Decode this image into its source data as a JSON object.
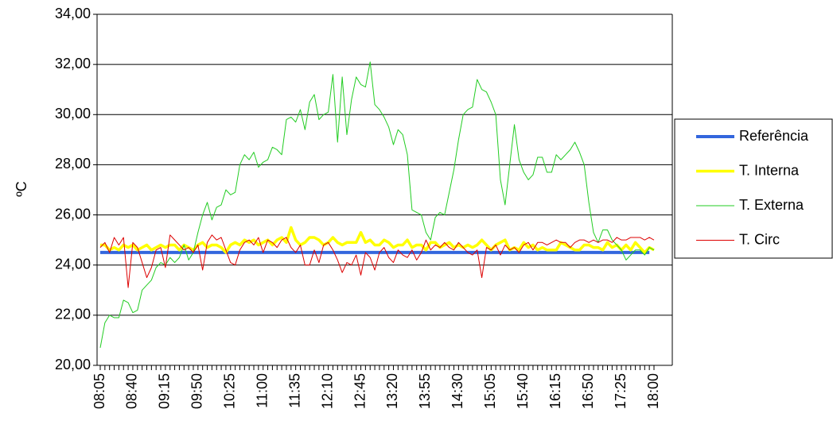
{
  "chart_data": {
    "type": "line",
    "y_label": "ºC",
    "ylim": [
      20,
      34
    ],
    "yticks": [
      {
        "value": 20,
        "label": "20,00"
      },
      {
        "value": 22,
        "label": "22,00"
      },
      {
        "value": 24,
        "label": "24,00"
      },
      {
        "value": 26,
        "label": "26,00"
      },
      {
        "value": 28,
        "label": "28,00"
      },
      {
        "value": 30,
        "label": "30,00"
      },
      {
        "value": 32,
        "label": "32,00"
      },
      {
        "value": 34,
        "label": "34,00"
      }
    ],
    "grid": true,
    "legend": "right",
    "categories": [
      "08:05",
      null,
      null,
      null,
      null,
      null,
      null,
      "08:40",
      null,
      null,
      null,
      null,
      null,
      null,
      "09:15",
      null,
      null,
      null,
      null,
      null,
      null,
      "09:50",
      null,
      null,
      null,
      null,
      null,
      null,
      "10:25",
      null,
      null,
      null,
      null,
      null,
      null,
      "11:00",
      null,
      null,
      null,
      null,
      null,
      null,
      "11:35",
      null,
      null,
      null,
      null,
      null,
      null,
      "12:10",
      null,
      null,
      null,
      null,
      null,
      null,
      "12:45",
      null,
      null,
      null,
      null,
      null,
      null,
      "13:20",
      null,
      null,
      null,
      null,
      null,
      null,
      "13:55",
      null,
      null,
      null,
      null,
      null,
      null,
      "14:30",
      null,
      null,
      null,
      null,
      null,
      null,
      "15:05",
      null,
      null,
      null,
      null,
      null,
      null,
      "15:40",
      null,
      null,
      null,
      null,
      null,
      null,
      "16:15",
      null,
      null,
      null,
      null,
      null,
      null,
      "16:50",
      null,
      null,
      null,
      null,
      null,
      null,
      "17:25",
      null,
      null,
      null,
      null,
      null,
      null,
      "18:00"
    ],
    "series": [
      {
        "name": "Referência",
        "color": "#3366dd",
        "width": 4,
        "values": [
          24.5,
          24.5,
          24.5,
          24.5,
          24.5,
          24.5,
          24.5,
          24.5,
          24.5,
          24.5,
          24.5,
          24.5,
          24.5,
          24.5,
          24.5,
          24.5,
          24.5,
          24.5,
          24.5,
          24.5,
          24.5,
          24.5,
          24.5,
          24.5,
          24.5,
          24.5,
          24.5,
          24.5,
          24.5,
          24.5,
          24.5,
          24.5,
          24.5,
          24.5,
          24.5,
          24.5,
          24.5,
          24.5,
          24.5,
          24.5,
          24.5,
          24.5,
          24.5,
          24.5,
          24.5,
          24.5,
          24.5,
          24.5,
          24.5,
          24.5,
          24.5,
          24.5,
          24.5,
          24.5,
          24.5,
          24.5,
          24.5,
          24.5,
          24.5,
          24.5,
          24.5,
          24.5,
          24.5,
          24.5,
          24.5,
          24.5,
          24.5,
          24.5,
          24.5,
          24.5,
          24.5,
          24.5,
          24.5,
          24.5,
          24.5,
          24.5,
          24.5,
          24.5,
          24.5,
          24.5,
          24.5,
          24.5,
          24.5,
          24.5,
          24.5,
          24.5,
          24.5,
          24.5,
          24.5,
          24.5,
          24.5,
          24.5,
          24.5,
          24.5,
          24.5,
          24.5,
          24.5,
          24.5,
          24.5,
          24.5,
          24.5,
          24.5,
          24.5,
          24.5,
          24.5,
          24.5,
          24.5,
          24.5,
          24.5,
          24.5,
          24.5,
          24.5,
          24.5,
          24.5,
          24.5,
          24.5,
          24.5,
          24.5,
          24.5,
          null
        ]
      },
      {
        "name": "T. Interna",
        "color": "#ffff00",
        "width": 3.5,
        "values": [
          24.8,
          24.8,
          24.6,
          24.7,
          24.6,
          24.8,
          24.7,
          24.8,
          24.6,
          24.7,
          24.8,
          24.6,
          24.7,
          24.8,
          24.7,
          24.8,
          24.8,
          24.6,
          24.8,
          24.7,
          24.6,
          24.8,
          24.9,
          24.7,
          24.8,
          24.8,
          24.7,
          24.5,
          24.8,
          24.9,
          24.8,
          25.0,
          24.9,
          25.0,
          24.8,
          24.9,
          25.0,
          24.8,
          25.0,
          25.1,
          24.9,
          25.5,
          25.0,
          24.8,
          24.9,
          25.1,
          25.1,
          25.0,
          24.8,
          24.9,
          25.1,
          24.9,
          24.8,
          24.9,
          24.9,
          24.9,
          25.3,
          24.9,
          25.0,
          24.8,
          24.8,
          25.0,
          24.9,
          24.7,
          24.8,
          24.8,
          25.0,
          24.7,
          24.8,
          24.8,
          24.6,
          24.9,
          24.9,
          24.7,
          24.8,
          24.9,
          24.7,
          24.8,
          24.7,
          24.8,
          24.7,
          24.8,
          25.0,
          24.8,
          24.6,
          24.8,
          24.9,
          25.0,
          24.6,
          24.7,
          24.6,
          24.9,
          24.7,
          24.8,
          24.6,
          24.7,
          24.6,
          24.6,
          24.6,
          24.9,
          24.8,
          24.7,
          24.6,
          24.6,
          24.8,
          24.8,
          24.7,
          24.7,
          24.6,
          24.9,
          24.7,
          24.8,
          24.6,
          24.8,
          24.6,
          24.9,
          24.7,
          24.5,
          24.7,
          24.6
        ]
      },
      {
        "name": "T. Externa",
        "color": "#22cc22",
        "width": 1,
        "values": [
          20.7,
          21.7,
          22.0,
          21.9,
          21.9,
          22.6,
          22.5,
          22.1,
          22.2,
          23.0,
          23.2,
          23.4,
          23.9,
          24.1,
          24.0,
          24.3,
          24.1,
          24.3,
          24.8,
          24.2,
          24.5,
          25.3,
          26.0,
          26.5,
          25.8,
          26.3,
          26.4,
          27.0,
          26.8,
          26.9,
          28.0,
          28.4,
          28.2,
          28.5,
          27.9,
          28.1,
          28.2,
          28.7,
          28.6,
          28.4,
          29.8,
          29.9,
          29.7,
          30.2,
          29.4,
          30.5,
          30.8,
          29.8,
          30.0,
          30.1,
          31.6,
          28.9,
          31.5,
          29.2,
          30.6,
          31.5,
          31.2,
          31.1,
          32.1,
          30.4,
          30.2,
          29.9,
          29.5,
          28.8,
          29.4,
          29.2,
          28.4,
          26.2,
          26.1,
          26.0,
          25.3,
          25.0,
          25.9,
          26.1,
          26.0,
          26.9,
          27.8,
          29.0,
          30.0,
          30.2,
          30.3,
          31.4,
          31.0,
          30.9,
          30.5,
          30.0,
          27.4,
          26.4,
          28.0,
          29.6,
          28.2,
          27.7,
          27.4,
          27.6,
          28.3,
          28.3,
          27.7,
          27.7,
          28.4,
          28.2,
          28.4,
          28.6,
          28.9,
          28.5,
          28.0,
          26.5,
          25.3,
          24.9,
          25.4,
          25.4,
          25.0,
          24.8,
          24.6,
          24.2,
          24.4,
          24.6,
          24.6,
          24.4,
          24.7,
          24.6
        ]
      },
      {
        "name": "T. Circ",
        "color": "#dd0000",
        "width": 1,
        "values": [
          24.7,
          24.9,
          24.5,
          25.1,
          24.8,
          25.1,
          23.1,
          24.9,
          24.7,
          24.1,
          23.5,
          23.9,
          24.6,
          24.7,
          23.9,
          25.2,
          25.0,
          24.8,
          24.6,
          24.7,
          24.5,
          24.8,
          23.8,
          24.9,
          25.2,
          25.0,
          25.1,
          24.6,
          24.1,
          24.0,
          24.6,
          24.9,
          25.0,
          24.8,
          25.1,
          24.5,
          25.0,
          24.9,
          24.7,
          25.0,
          25.1,
          24.7,
          24.5,
          24.8,
          24.0,
          24.0,
          24.6,
          24.1,
          24.8,
          24.9,
          24.6,
          24.2,
          23.7,
          24.1,
          24.0,
          24.4,
          23.6,
          24.5,
          24.3,
          23.8,
          24.5,
          24.7,
          24.3,
          24.1,
          24.6,
          24.4,
          24.3,
          24.6,
          24.2,
          24.5,
          25.0,
          24.6,
          24.8,
          24.7,
          24.9,
          24.7,
          24.6,
          24.9,
          24.7,
          24.5,
          24.4,
          24.6,
          23.5,
          24.7,
          24.6,
          24.8,
          24.4,
          24.8,
          24.6,
          24.7,
          24.5,
          24.8,
          24.9,
          24.6,
          24.9,
          24.9,
          24.8,
          24.9,
          25.0,
          24.9,
          24.9,
          24.7,
          24.9,
          25.0,
          25.0,
          24.9,
          25.0,
          24.9,
          25.0,
          25.0,
          24.9,
          25.1,
          25.0,
          25.0,
          25.1,
          25.1,
          25.1,
          25.0,
          25.1,
          25.0
        ]
      }
    ]
  }
}
